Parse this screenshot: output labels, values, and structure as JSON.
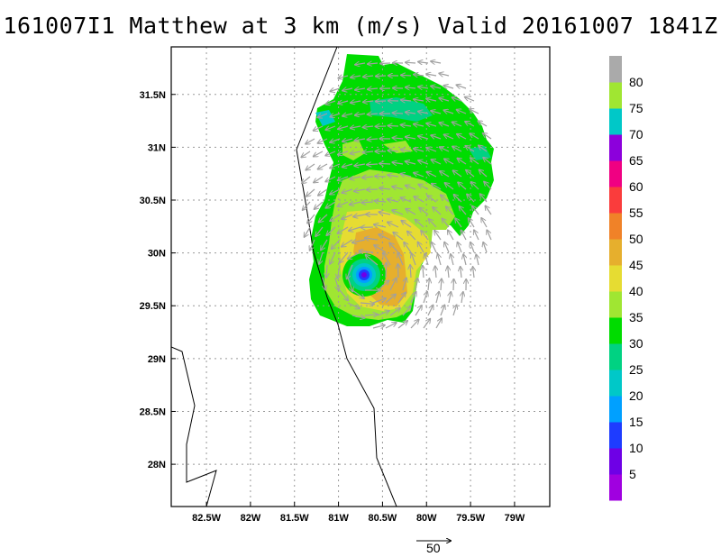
{
  "title": "161007I1 Matthew at 3 km (m/s) Valid 20161007 1841Z",
  "map": {
    "lon_range": [
      -82.9,
      -78.6
    ],
    "lat_range": [
      27.6,
      31.95
    ],
    "lon_ticks": [
      {
        "value": -82.5,
        "label": "82.5W"
      },
      {
        "value": -82.0,
        "label": "82W"
      },
      {
        "value": -81.5,
        "label": "81.5W"
      },
      {
        "value": -81.0,
        "label": "81W"
      },
      {
        "value": -80.5,
        "label": "80.5W"
      },
      {
        "value": -80.0,
        "label": "80W"
      },
      {
        "value": -79.5,
        "label": "79.5W"
      },
      {
        "value": -79.0,
        "label": "79W"
      }
    ],
    "lat_ticks": [
      {
        "value": 28.0,
        "label": "28N"
      },
      {
        "value": 28.5,
        "label": "28.5N"
      },
      {
        "value": 29.0,
        "label": "29N"
      },
      {
        "value": 29.5,
        "label": "29.5N"
      },
      {
        "value": 30.0,
        "label": "30N"
      },
      {
        "value": 30.5,
        "label": "30.5N"
      },
      {
        "value": 31.0,
        "label": "31N"
      },
      {
        "value": 31.5,
        "label": "31.5N"
      }
    ],
    "grid": true,
    "storm_center": {
      "lon": -80.67,
      "lat": 29.8
    },
    "coast_color": "#000000",
    "vector_color": "#a0a0a0"
  },
  "colorbar": {
    "colors": [
      "#a000e0",
      "#6e00e6",
      "#1e3cff",
      "#00a0ff",
      "#00c8c8",
      "#00d282",
      "#00dc00",
      "#a0e632",
      "#e6dc32",
      "#e6af2d",
      "#f08228",
      "#fa3c3c",
      "#f00082",
      "#8c00dc",
      "#00c8c8",
      "#a0e632",
      "#aaaaaa"
    ],
    "labels": [
      "5",
      "10",
      "15",
      "20",
      "25",
      "30",
      "35",
      "40",
      "45",
      "50",
      "55",
      "60",
      "65",
      "70",
      "75",
      "80"
    ]
  },
  "scale": {
    "label": "50"
  }
}
